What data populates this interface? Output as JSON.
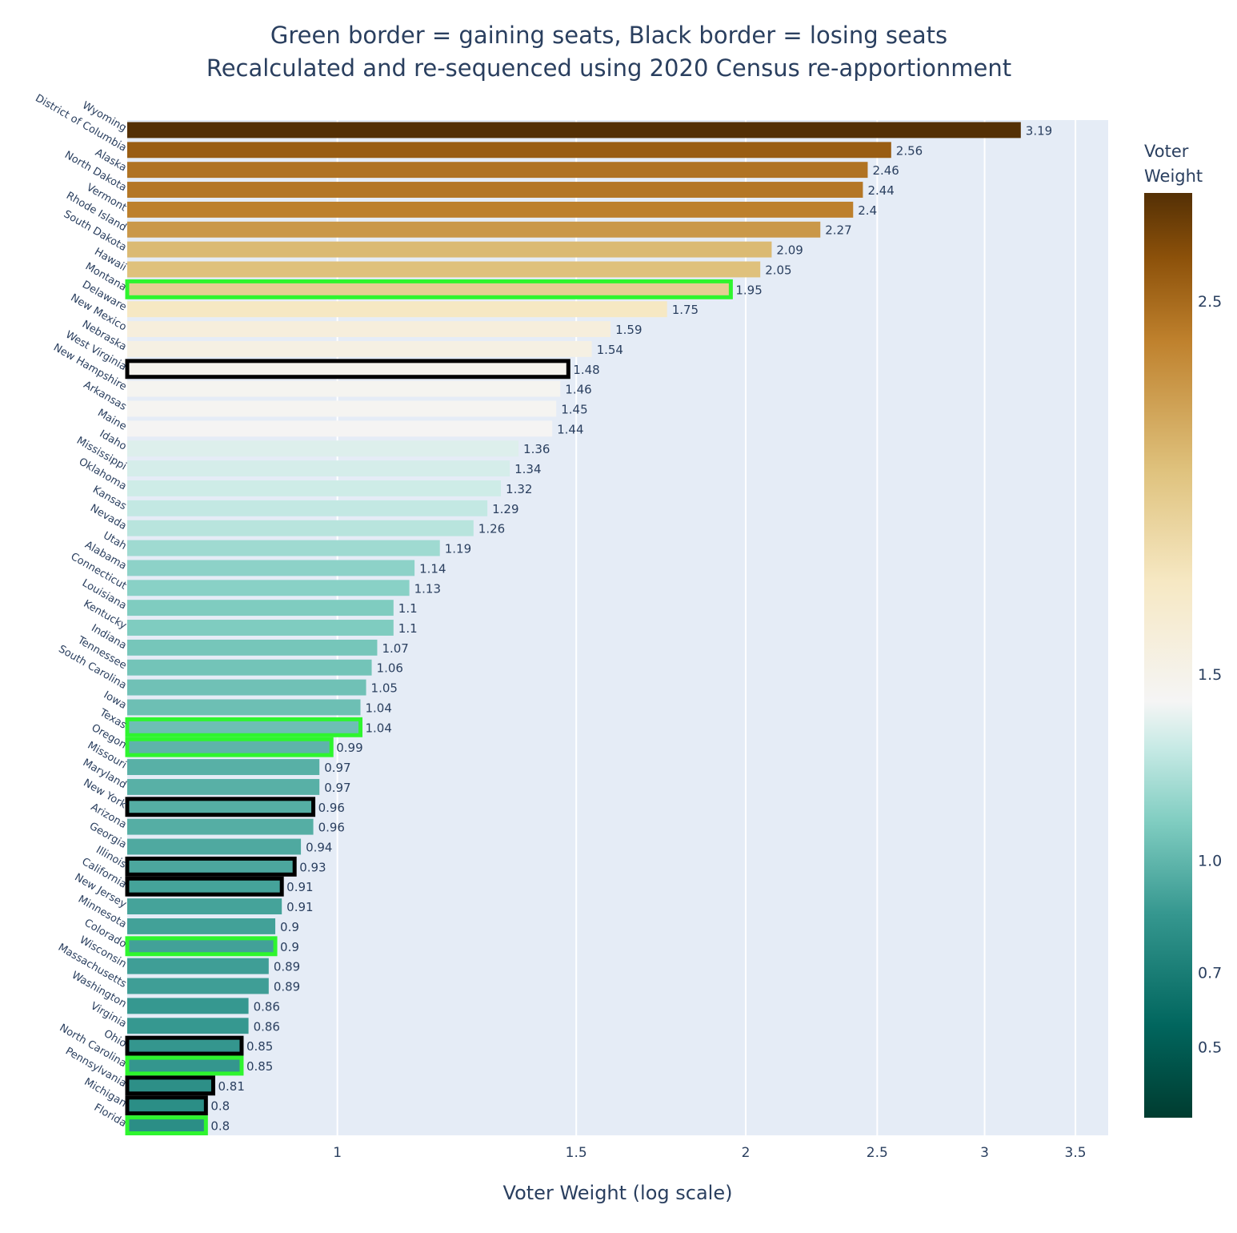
{
  "chart_data": {
    "type": "bar",
    "orientation": "horizontal",
    "title": [
      "Green border = gaining seats, Black border = losing seats",
      "Recalculated and re-sequenced using 2020 Census re-apportionment"
    ],
    "xlabel": "Voter Weight (log scale)",
    "ylabel": "",
    "x_scale": "log",
    "xlim": [
      0.7,
      3.7
    ],
    "x_ticks": [
      1,
      1.5,
      2,
      2.5,
      3,
      3.5
    ],
    "x_tick_labels": [
      "1",
      "1.5",
      "2",
      "2.5",
      "3",
      "3.5"
    ],
    "grid": true,
    "colorbar": {
      "title": [
        "Voter",
        "Weight"
      ],
      "min": 0.31,
      "max": 2.79,
      "ticks": [
        2.5,
        1.5,
        1.0,
        0.7,
        0.5
      ],
      "tick_labels": [
        "2.5",
        "1.5",
        "1.0",
        "0.7",
        "0.5"
      ],
      "colorscale": "BrBG reversed (teal at low, white at 1.0, brown at high)"
    },
    "legend": "none",
    "colors": {
      "plot_background": "#e5ecf6",
      "gridline": "#ffffff",
      "text": "#2a3f5f",
      "gaining_border": "#2ef52e",
      "losing_border": "#000000"
    },
    "categories": [
      "Wyoming",
      "District of Columbia",
      "Alaska",
      "North Dakota",
      "Vermont",
      "Rhode Island",
      "South Dakota",
      "Hawaii",
      "Montana",
      "Delaware",
      "New Mexico",
      "Nebraska",
      "West Virginia",
      "New Hampshire",
      "Arkansas",
      "Maine",
      "Idaho",
      "Mississippi",
      "Oklahoma",
      "Kansas",
      "Nevada",
      "Utah",
      "Alabama",
      "Connecticut",
      "Louisiana",
      "Kentucky",
      "Indiana",
      "Tennessee",
      "South Carolina",
      "Iowa",
      "Texas",
      "Oregon",
      "Missouri",
      "Maryland",
      "New York",
      "Arizona",
      "Georgia",
      "Illinois",
      "California",
      "New Jersey",
      "Minnesota",
      "Colorado",
      "Wisconsin",
      "Massachusetts",
      "Washington",
      "Virginia",
      "Ohio",
      "North Carolina",
      "Pennsylvania",
      "Michigan",
      "Florida"
    ],
    "values": [
      3.19,
      2.56,
      2.46,
      2.44,
      2.4,
      2.27,
      2.09,
      2.05,
      1.95,
      1.75,
      1.59,
      1.54,
      1.48,
      1.46,
      1.45,
      1.44,
      1.36,
      1.34,
      1.32,
      1.29,
      1.26,
      1.19,
      1.14,
      1.13,
      1.1,
      1.1,
      1.07,
      1.06,
      1.05,
      1.04,
      1.04,
      0.99,
      0.97,
      0.97,
      0.96,
      0.96,
      0.94,
      0.93,
      0.91,
      0.91,
      0.9,
      0.9,
      0.89,
      0.89,
      0.86,
      0.86,
      0.85,
      0.85,
      0.81,
      0.8,
      0.8
    ],
    "value_labels": [
      "3.19",
      "2.56",
      "2.46",
      "2.44",
      "2.4",
      "2.27",
      "2.09",
      "2.05",
      "1.95",
      "1.75",
      "1.59",
      "1.54",
      "1.48",
      "1.46",
      "1.45",
      "1.44",
      "1.36",
      "1.34",
      "1.32",
      "1.29",
      "1.26",
      "1.19",
      "1.14",
      "1.13",
      "1.1",
      "1.1",
      "1.07",
      "1.06",
      "1.05",
      "1.04",
      "1.04",
      "0.99",
      "0.97",
      "0.97",
      "0.96",
      "0.96",
      "0.94",
      "0.93",
      "0.91",
      "0.91",
      "0.9",
      "0.9",
      "0.89",
      "0.89",
      "0.86",
      "0.86",
      "0.85",
      "0.85",
      "0.81",
      "0.8",
      "0.8"
    ],
    "seat_change": [
      "none",
      "none",
      "none",
      "none",
      "none",
      "none",
      "none",
      "none",
      "gain",
      "none",
      "none",
      "none",
      "loss",
      "none",
      "none",
      "none",
      "none",
      "none",
      "none",
      "none",
      "none",
      "none",
      "none",
      "none",
      "none",
      "none",
      "none",
      "none",
      "none",
      "none",
      "gain",
      "gain",
      "none",
      "none",
      "loss",
      "none",
      "none",
      "loss",
      "loss",
      "none",
      "none",
      "gain",
      "none",
      "none",
      "none",
      "none",
      "loss",
      "gain",
      "loss",
      "loss",
      "gain"
    ]
  }
}
